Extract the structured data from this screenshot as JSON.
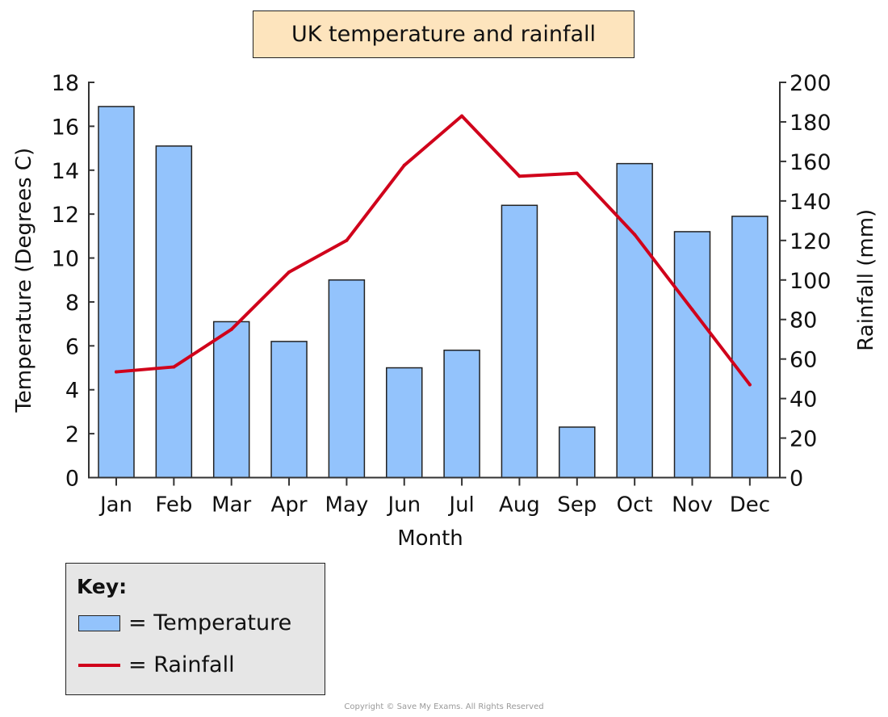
{
  "chart_data": {
    "type": "bar+line",
    "title": "UK temperature and rainfall",
    "xlabel": "Month",
    "ylabel_left": "Temperature (Degrees C)",
    "ylabel_right": "Rainfall (mm)",
    "categories": [
      "Jan",
      "Feb",
      "Mar",
      "Apr",
      "May",
      "Jun",
      "Jul",
      "Aug",
      "Sep",
      "Oct",
      "Nov",
      "Dec"
    ],
    "ylim_left": [
      0,
      18
    ],
    "yticks_left": [
      0,
      2,
      4,
      6,
      8,
      10,
      12,
      14,
      16,
      18
    ],
    "ylim_right": [
      0,
      200
    ],
    "yticks_right": [
      0,
      20,
      40,
      60,
      80,
      100,
      120,
      140,
      160,
      180,
      200
    ],
    "grid": false,
    "series": [
      {
        "name": "Temperature",
        "type": "bar",
        "axis": "left",
        "color": "#93c3fc",
        "values": [
          16.9,
          15.1,
          7.1,
          6.2,
          9.0,
          5.0,
          5.8,
          12.4,
          2.3,
          14.3,
          11.2,
          11.9
        ]
      },
      {
        "name": "Rainfall",
        "type": "line",
        "axis": "right",
        "color": "#d0021b",
        "values": [
          53.5,
          56,
          75,
          104,
          120,
          158,
          183,
          152.5,
          154,
          123,
          85,
          47
        ]
      }
    ],
    "legend": {
      "title": "Key:",
      "placement": "bottom-left",
      "entries": [
        "= Temperature",
        "= Rainfall"
      ]
    }
  },
  "copyright": "Copyright © Save My Exams. All Rights Reserved"
}
